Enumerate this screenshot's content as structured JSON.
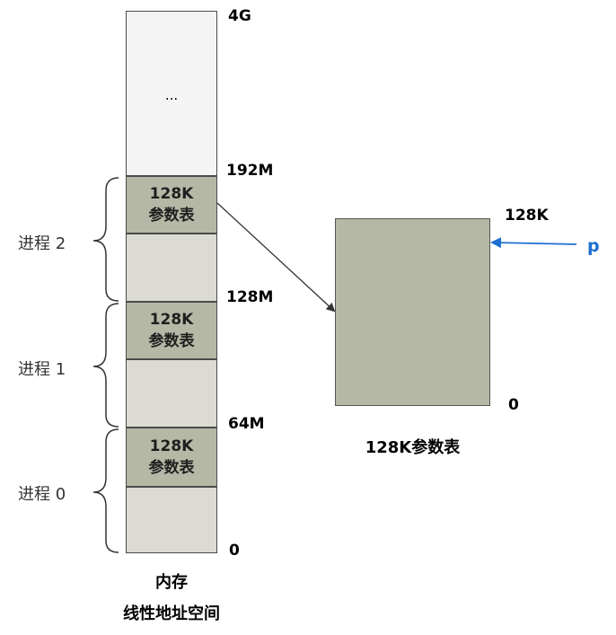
{
  "memory": {
    "top_label": "...",
    "blocks": [
      {
        "line1": "128K",
        "line2": "参数表"
      },
      {
        "line1": "128K",
        "line2": "参数表"
      },
      {
        "line1": "128K",
        "line2": "参数表"
      }
    ],
    "addresses": [
      "4G",
      "192M",
      "128M",
      "64M",
      "0"
    ],
    "caption_line1": "内存",
    "caption_line2": "线性地址空间"
  },
  "processes": [
    "进程 2",
    "进程 1",
    "进程 0"
  ],
  "param_table": {
    "top_label": "128K",
    "bottom_label": "0",
    "caption": "128K参数表",
    "pointer_label": "p"
  },
  "colors": {
    "pointer": "#1f6fd1",
    "block_dark": "#b6b8a6",
    "block_light": "#dbdbd3",
    "block_top": "#f4f4f4"
  }
}
